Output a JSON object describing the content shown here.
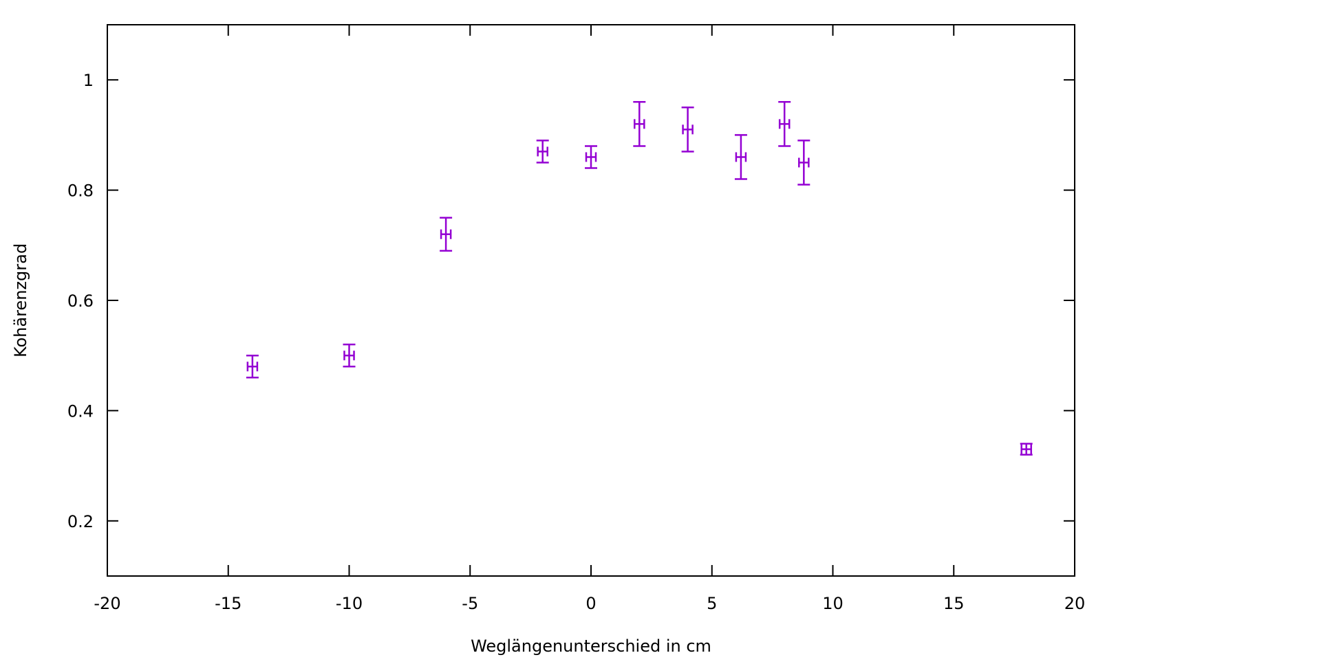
{
  "chart_data": {
    "type": "scatter",
    "xlabel": "Weglängenunterschied in cm",
    "ylabel": "Kohärenzgrad",
    "xlim": [
      -20,
      20
    ],
    "ylim": [
      0.1,
      1.1
    ],
    "x_ticks": [
      -20,
      -15,
      -10,
      -5,
      0,
      5,
      10,
      15,
      20
    ],
    "x_tick_labels": [
      "-20",
      "-15",
      "-10",
      "-5",
      "0",
      "5",
      "10",
      "15",
      "20"
    ],
    "y_ticks": [
      0.2,
      0.4,
      0.6,
      0.8,
      1.0
    ],
    "y_tick_labels": [
      "0.2",
      "0.4",
      "0.6",
      "0.8",
      "1"
    ],
    "grid": false,
    "legend": "none",
    "marker_color": "#9400d3",
    "axis_color": "#000000",
    "series": [
      {
        "points": [
          {
            "x": -14,
            "y": 0.48,
            "xerr": 0.2,
            "yerr": 0.02
          },
          {
            "x": -10,
            "y": 0.5,
            "xerr": 0.2,
            "yerr": 0.02
          },
          {
            "x": -6,
            "y": 0.72,
            "xerr": 0.2,
            "yerr": 0.03
          },
          {
            "x": -2,
            "y": 0.87,
            "xerr": 0.2,
            "yerr": 0.02
          },
          {
            "x": 0,
            "y": 0.86,
            "xerr": 0.2,
            "yerr": 0.02
          },
          {
            "x": 2,
            "y": 0.92,
            "xerr": 0.2,
            "yerr": 0.04
          },
          {
            "x": 4,
            "y": 0.91,
            "xerr": 0.2,
            "yerr": 0.04
          },
          {
            "x": 6.2,
            "y": 0.86,
            "xerr": 0.2,
            "yerr": 0.04
          },
          {
            "x": 8,
            "y": 0.92,
            "xerr": 0.2,
            "yerr": 0.04
          },
          {
            "x": 8.8,
            "y": 0.85,
            "xerr": 0.2,
            "yerr": 0.04
          },
          {
            "x": 18,
            "y": 0.33,
            "xerr": 0.2,
            "yerr": 0.01
          }
        ]
      }
    ]
  }
}
